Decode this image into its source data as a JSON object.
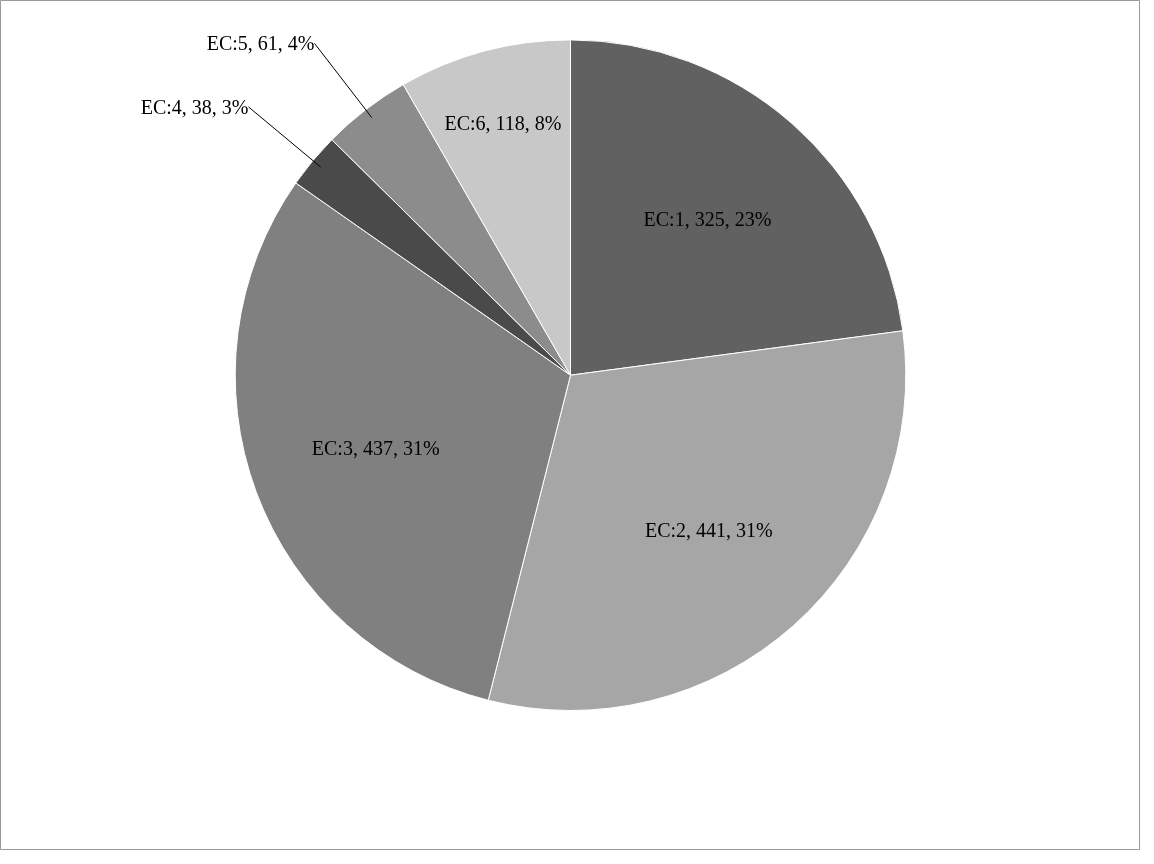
{
  "chart_data": {
    "type": "pie",
    "categories": [
      "EC:1, 325, 23%",
      "EC:2, 441, 31%",
      "EC:3, 437, 31%",
      "EC:4, 38, 3%",
      "EC:5, 61, 4%",
      "EC:6, 118, 8%"
    ],
    "values": [
      325,
      441,
      437,
      38,
      61,
      118
    ],
    "colors": [
      "#616161",
      "#a6a6a6",
      "#808080",
      "#4a4a4a",
      "#8c8c8c",
      "#c8c8c8"
    ]
  }
}
